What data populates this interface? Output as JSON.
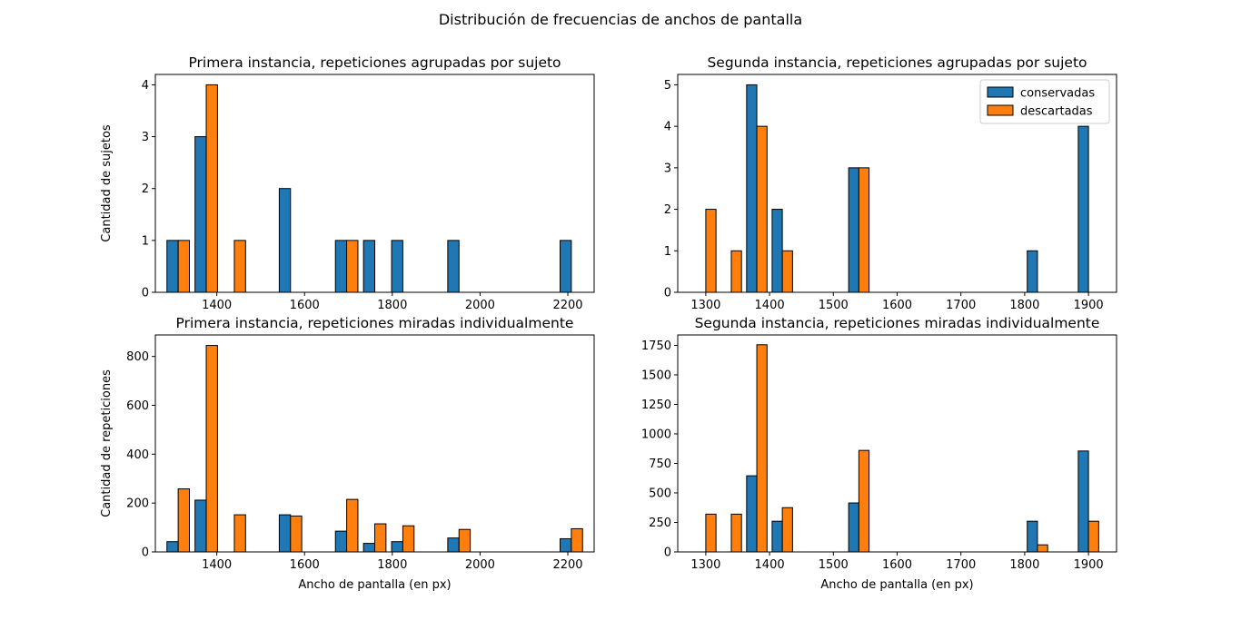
{
  "figure": {
    "suptitle": "Distribución de frecuencias de anchos de pantalla",
    "colors": {
      "conservadas": "#1f77b4",
      "descartadas": "#ff7f0e",
      "edge": "#000000"
    }
  },
  "chart_data": [
    {
      "type": "bar",
      "title": "Primera instancia, repeticiones agrupadas por sujeto",
      "xlabel": "",
      "ylabel": "Cantidad de sujetos",
      "xlim": [
        1260,
        2260
      ],
      "ylim": [
        0,
        4.2
      ],
      "xticks": [
        1400,
        1600,
        1800,
        2000,
        2200
      ],
      "yticks": [
        0,
        1,
        2,
        3,
        4
      ],
      "bin_edges": [
        1280,
        1344,
        1408,
        1472,
        1536,
        1600,
        1664,
        1728,
        1792,
        1856,
        1920,
        1984,
        2048,
        2112,
        2176,
        2240
      ],
      "legend": null,
      "series": [
        {
          "name": "conservadas",
          "values": [
            1,
            3,
            0,
            0,
            2,
            0,
            1,
            1,
            1,
            0,
            1,
            0,
            0,
            0,
            1
          ]
        },
        {
          "name": "descartadas",
          "values": [
            1,
            4,
            1,
            0,
            0,
            0,
            1,
            0,
            0,
            0,
            0,
            0,
            0,
            0,
            0
          ]
        }
      ]
    },
    {
      "type": "bar",
      "title": "Segunda instancia, repeticiones agrupadas por sujeto",
      "xlabel": "",
      "ylabel": "",
      "xlim": [
        1256,
        1944
      ],
      "ylim": [
        0,
        5.25
      ],
      "xticks": [
        1300,
        1400,
        1500,
        1600,
        1700,
        1800,
        1900
      ],
      "yticks": [
        0,
        1,
        2,
        3,
        4,
        5
      ],
      "bin_edges": [
        1280,
        1320,
        1360,
        1400,
        1440,
        1480,
        1520,
        1560,
        1600,
        1640,
        1680,
        1720,
        1760,
        1800,
        1840,
        1880,
        1920
      ],
      "legend": "upper right",
      "series": [
        {
          "name": "conservadas",
          "values": [
            0,
            0,
            5,
            2,
            0,
            0,
            3,
            0,
            0,
            0,
            0,
            0,
            0,
            1,
            0,
            4
          ]
        },
        {
          "name": "descartadas",
          "values": [
            2,
            1,
            4,
            1,
            0,
            0,
            3,
            0,
            0,
            0,
            0,
            0,
            0,
            0,
            0,
            0
          ]
        }
      ]
    },
    {
      "type": "bar",
      "title": "Primera instancia, repeticiones miradas individualmente",
      "xlabel": "Ancho de pantalla (en px)",
      "ylabel": "Cantidad de repeticiones",
      "xlim": [
        1260,
        2260
      ],
      "ylim": [
        0,
        888
      ],
      "xticks": [
        1400,
        1600,
        1800,
        2000,
        2200
      ],
      "yticks": [
        0,
        200,
        400,
        600,
        800
      ],
      "bin_edges": [
        1280,
        1344,
        1408,
        1472,
        1536,
        1600,
        1664,
        1728,
        1792,
        1856,
        1920,
        1984,
        2048,
        2112,
        2176,
        2240
      ],
      "legend": null,
      "series": [
        {
          "name": "conservadas",
          "values": [
            42,
            212,
            0,
            0,
            152,
            0,
            85,
            35,
            42,
            0,
            57,
            0,
            0,
            0,
            54
          ]
        },
        {
          "name": "descartadas",
          "values": [
            258,
            845,
            152,
            0,
            147,
            0,
            215,
            115,
            107,
            0,
            92,
            0,
            0,
            0,
            95
          ]
        }
      ]
    },
    {
      "type": "bar",
      "title": "Segunda instancia, repeticiones miradas individualmente",
      "xlabel": "Ancho de pantalla (en px)",
      "ylabel": "",
      "xlim": [
        1256,
        1944
      ],
      "ylim": [
        0,
        1838
      ],
      "xticks": [
        1300,
        1400,
        1500,
        1600,
        1700,
        1800,
        1900
      ],
      "yticks": [
        0,
        250,
        500,
        750,
        1000,
        1250,
        1500,
        1750
      ],
      "bin_edges": [
        1280,
        1320,
        1360,
        1400,
        1440,
        1480,
        1520,
        1560,
        1600,
        1640,
        1680,
        1720,
        1760,
        1800,
        1840,
        1880,
        1920
      ],
      "legend": null,
      "series": [
        {
          "name": "conservadas",
          "values": [
            0,
            0,
            645,
            260,
            0,
            0,
            415,
            0,
            0,
            0,
            0,
            0,
            0,
            260,
            0,
            855
          ]
        },
        {
          "name": "descartadas",
          "values": [
            320,
            320,
            1755,
            375,
            0,
            0,
            860,
            0,
            0,
            0,
            0,
            0,
            0,
            60,
            0,
            260
          ]
        }
      ]
    }
  ]
}
